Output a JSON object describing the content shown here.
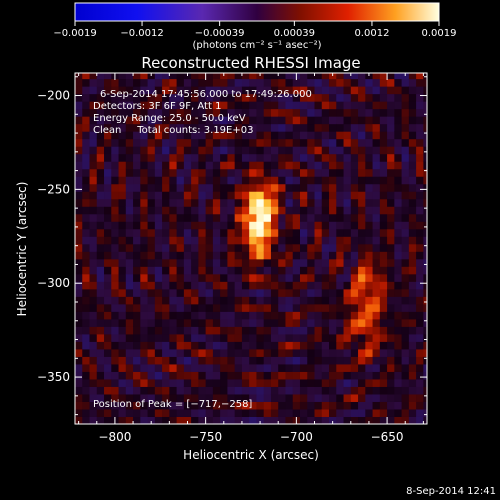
{
  "chart_data": {
    "type": "heatmap",
    "title": "Reconstructed RHESSI Image",
    "xlabel": "Heliocentric X (arcsec)",
    "ylabel": "Heliocentric Y (arcsec)",
    "xlim": [
      -822,
      -628
    ],
    "ylim": [
      -375,
      -188
    ],
    "x_ticks": [
      -800,
      -750,
      -700,
      -650
    ],
    "x_tick_labels": [
      "−800",
      "−750",
      "−700",
      "−650"
    ],
    "y_ticks": [
      -200,
      -250,
      -300,
      -350
    ],
    "y_tick_labels": [
      "−200",
      "−250",
      "−300",
      "−350"
    ],
    "colorbar": {
      "label": "(photons cm⁻² s⁻¹ asec⁻²)",
      "range": [
        -0.0019,
        0.0019
      ],
      "ticks": [
        -0.0019,
        -0.0012,
        -0.00039,
        0.00039,
        0.0012,
        0.0019
      ],
      "tick_labels": [
        "−0.0019",
        "−0.0012",
        "−0.00039",
        "0.00039",
        "0.0012",
        "0.0019"
      ]
    },
    "annotations": [
      "6-Sep-2014 17:45:56.000 to 17:49:26.000",
      "Detectors: 3F 6F 9F, Att 1",
      "Energy Range: 25.0 - 50.0 keV",
      "Clean     Total counts: 3.19E+03"
    ],
    "peak_label": "Position of Peak = [−717,−258]",
    "peak": {
      "x": -717,
      "y": -258,
      "value": 0.0019
    },
    "sources": [
      {
        "x": -721,
        "y": -268,
        "sx": 6,
        "sy": 13,
        "amp": 1.0
      },
      {
        "x": -717,
        "y": -256,
        "sx": 5,
        "sy": 6,
        "amp": 0.35
      },
      {
        "x": -662,
        "y": -318,
        "sx": 7,
        "sy": 14,
        "amp": 0.45
      },
      {
        "x": -660,
        "y": -298,
        "sx": 6,
        "sy": 8,
        "amp": 0.3
      }
    ],
    "grid": false
  },
  "footer": {
    "timestamp": "8-Sep-2014 12:41"
  },
  "colors": {
    "background": "#000000",
    "text": "#ffffff"
  }
}
